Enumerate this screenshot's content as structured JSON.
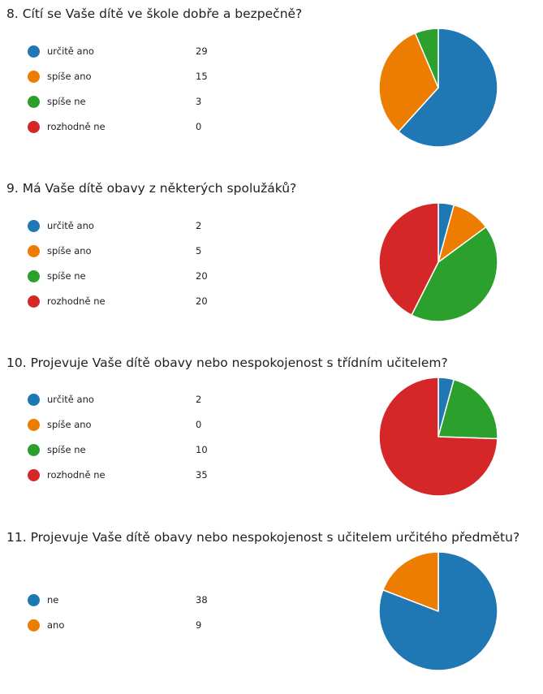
{
  "chart_data": [
    {
      "type": "pie",
      "title": "8.  Cítí se Vaše dítě ve škole dobře a bezpečně?",
      "categories": [
        "určitě ano",
        "spíše ano",
        "spíše ne",
        "rozhodně ne"
      ],
      "values": [
        29,
        15,
        3,
        0
      ],
      "colors": [
        "#1f77b4",
        "#ed7d00",
        "#2ca02c",
        "#d62728"
      ],
      "legend": "left"
    },
    {
      "type": "pie",
      "title": "9.  Má Vaše dítě obavy z některých spolužáků?",
      "categories": [
        "určitě ano",
        "spíše ano",
        "spíše ne",
        "rozhodně ne"
      ],
      "values": [
        2,
        5,
        20,
        20
      ],
      "colors": [
        "#1f77b4",
        "#ed7d00",
        "#2ca02c",
        "#d62728"
      ],
      "legend": "left"
    },
    {
      "type": "pie",
      "title": "10.  Projevuje Vaše dítě obavy nebo nespokojenost s třídním učitelem?",
      "categories": [
        "určitě ano",
        "spíše ano",
        "spíše ne",
        "rozhodně ne"
      ],
      "values": [
        2,
        0,
        10,
        35
      ],
      "colors": [
        "#1f77b4",
        "#ed7d00",
        "#2ca02c",
        "#d62728"
      ],
      "legend": "left"
    },
    {
      "type": "pie",
      "title": "11.  Projevuje Vaše dítě obavy nebo nespokojenost s učitelem určitého předmětu?",
      "categories": [
        "ne",
        "ano"
      ],
      "values": [
        38,
        9
      ],
      "colors": [
        "#1f77b4",
        "#ed7d00"
      ],
      "legend": "left"
    }
  ]
}
